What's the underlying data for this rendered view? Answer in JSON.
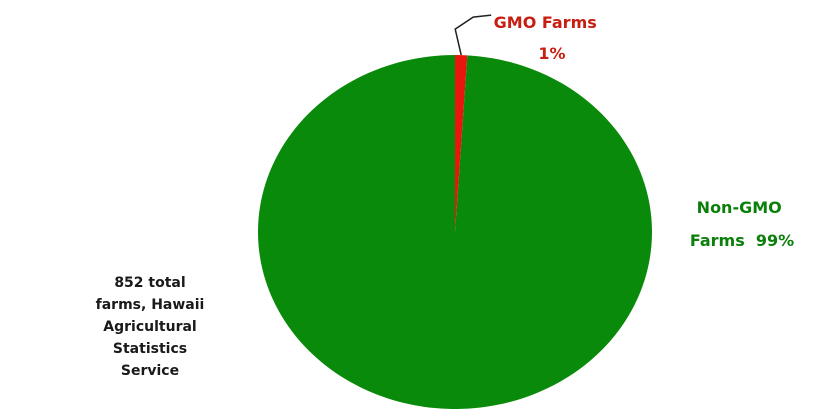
{
  "chart_data": {
    "type": "pie",
    "title": "",
    "slices": [
      {
        "label_lines": [
          "GMO Farms",
          "1%"
        ],
        "value": 1,
        "color": "#e8160c"
      },
      {
        "label_lines": [
          "Non-GMO",
          "Farms  99%"
        ],
        "value": 99,
        "color": "#0a8a0a"
      }
    ],
    "legend": "none",
    "label_color_gmo": "#c81e12",
    "label_color_nongmo": "#0a7f0a"
  },
  "annotation": {
    "lines": [
      "852 total",
      "farms, Hawaii",
      "Agricultural",
      "Statistics",
      "Service"
    ]
  }
}
